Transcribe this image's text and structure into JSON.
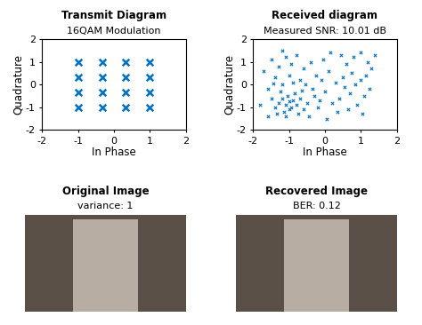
{
  "chart_data": [
    {
      "type": "scatter",
      "title": "Transmit Diagram",
      "subtitle": "16QAM Modulation",
      "x_label": "In Phase",
      "y_label": "Quadrature",
      "color": "#0072bd",
      "marker": "x",
      "x": [
        -1,
        -1,
        -1,
        -1,
        -0.33,
        -0.33,
        -0.33,
        -0.33,
        0.33,
        0.33,
        0.33,
        0.33,
        1,
        1,
        1,
        1
      ],
      "y": [
        -1,
        -0.33,
        0.33,
        1,
        -1,
        -0.33,
        0.33,
        1,
        -1,
        -0.33,
        0.33,
        1,
        -1,
        -0.33,
        0.33,
        1
      ],
      "xlim": [
        -2,
        2
      ],
      "xticks": [
        -2,
        -1,
        0,
        1,
        2
      ],
      "ylim": [
        -2,
        2
      ],
      "yticks": [
        -2,
        -1,
        0,
        1,
        2
      ]
    },
    {
      "type": "scatter",
      "title": "Received diagram",
      "subtitle": "Measured SNR: 10.01 dB",
      "x_label": "In Phase",
      "y_label": "Quadrature",
      "color": "#0072bd",
      "marker": "x",
      "x": [
        -1.1,
        -0.9,
        -1.2,
        -1.0,
        -0.8,
        -1.3,
        -1.05,
        -0.95,
        -1.15,
        -0.7,
        -1.4,
        -0.85,
        -1.25,
        -1.0,
        -0.6,
        -1.5,
        -1.1,
        -0.75,
        -1.35,
        -0.5,
        -1.6,
        -1.2,
        -0.9,
        -1.4,
        -1.0,
        -0.7,
        -1.7,
        -1.3,
        -0.95,
        -1.1,
        -0.6,
        -1.5,
        -0.8,
        -1.2,
        -0.4,
        -1.8,
        -1.6,
        -0.3,
        -0.2,
        -0.45,
        -0.1,
        0.0,
        0.1,
        -0.25,
        0.2,
        0.3,
        -0.05,
        0.15,
        0.35,
        0.05,
        0.5,
        0.7,
        0.6,
        0.8,
        0.9,
        0.55,
        0.75,
        1.0,
        1.1,
        0.45,
        1.2,
        1.3,
        1.0,
        1.25,
        0.65,
        1.4,
        0.85,
        1.05,
        0.4,
        1.15,
        -0.55,
        -0.35,
        -0.65,
        -1.45,
        -0.15
      ],
      "y": [
        -0.9,
        -0.7,
        -0.6,
        -1.1,
        -0.9,
        -0.8,
        -0.5,
        -1.0,
        -1.2,
        -0.6,
        -1.0,
        -0.4,
        -0.3,
        -0.75,
        -1.1,
        -0.6,
        -1.4,
        -1.3,
        -1.3,
        -0.8,
        -0.2,
        0.0,
        0.1,
        0.3,
        0.4,
        0.2,
        0.6,
        0.8,
        0.9,
        1.2,
        0.7,
        1.1,
        1.3,
        1.5,
        1.0,
        -0.9,
        -1.4,
        -0.5,
        -1.0,
        -1.4,
        0.2,
        -0.3,
        0.6,
        0.4,
        -0.8,
        0.1,
        1.1,
        1.4,
        -1.2,
        -1.5,
        0.3,
        -0.4,
        0.9,
        1.2,
        -0.9,
        -0.1,
        0.5,
        0.2,
        -0.5,
        1.3,
        1.0,
        0.7,
        1.4,
        -0.2,
        -1.1,
        1.3,
        0.0,
        -1.3,
        -0.6,
        0.4,
        0.0,
        -0.2,
        -0.25,
        0.05,
        -0.7
      ],
      "xlim": [
        -2,
        2
      ],
      "xticks": [
        -2,
        -1,
        0,
        1,
        2
      ],
      "ylim": [
        -2,
        2
      ],
      "yticks": [
        -2,
        -1,
        0,
        1,
        2
      ]
    }
  ],
  "images": [
    {
      "title": "Original Image",
      "subtitle": "variance: 1"
    },
    {
      "title": "Recovered Image",
      "subtitle": "BER: 0.12"
    }
  ]
}
